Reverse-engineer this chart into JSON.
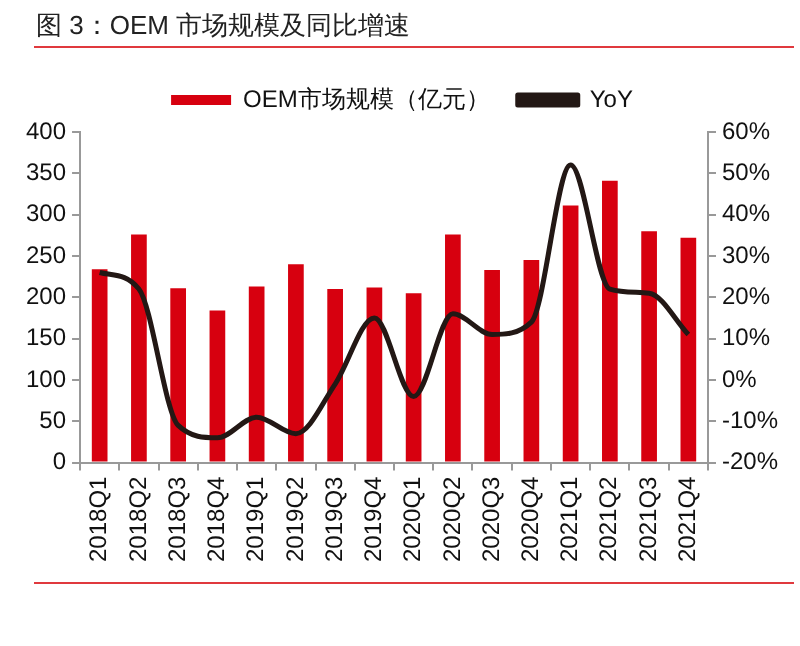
{
  "chart_data": {
    "type": "bar",
    "title": "图 3：OEM 市场规模及同比增速",
    "categories": [
      "2018Q1",
      "2018Q2",
      "2018Q3",
      "2018Q4",
      "2019Q1",
      "2019Q2",
      "2019Q3",
      "2019Q4",
      "2020Q1",
      "2020Q2",
      "2020Q3",
      "2020Q4",
      "2021Q1",
      "2021Q2",
      "2021Q3",
      "2021Q4"
    ],
    "series": [
      {
        "name": "OEM市场规模（亿元）",
        "color": "#d7000f",
        "values": [
          234,
          276,
          211,
          184,
          213,
          240,
          210,
          212,
          205,
          276,
          233,
          245,
          311,
          341,
          280,
          272
        ]
      },
      {
        "name": "YoY",
        "type": "line",
        "axis": "y2",
        "color": "#231815",
        "values": [
          26,
          22,
          -11,
          -14,
          -9,
          -13,
          -1,
          15,
          -4,
          16,
          11,
          14,
          52,
          22,
          21,
          11
        ]
      }
    ],
    "ylim": [
      0,
      400
    ],
    "yticks": [
      0,
      50,
      100,
      150,
      200,
      250,
      300,
      350,
      400
    ],
    "y2lim": [
      -20,
      60
    ],
    "y2ticks": [
      {
        "value": -20,
        "label": "-20%"
      },
      {
        "value": -10,
        "label": "-10%"
      },
      {
        "value": 0,
        "label": "0%"
      },
      {
        "value": 10,
        "label": "10%"
      },
      {
        "value": 20,
        "label": "20%"
      },
      {
        "value": 30,
        "label": "30%"
      },
      {
        "value": 40,
        "label": "40%"
      },
      {
        "value": 50,
        "label": "50%"
      },
      {
        "value": 60,
        "label": "60%"
      }
    ],
    "grid": false,
    "legend": "top",
    "marker": "none",
    "line_style": "solid"
  }
}
